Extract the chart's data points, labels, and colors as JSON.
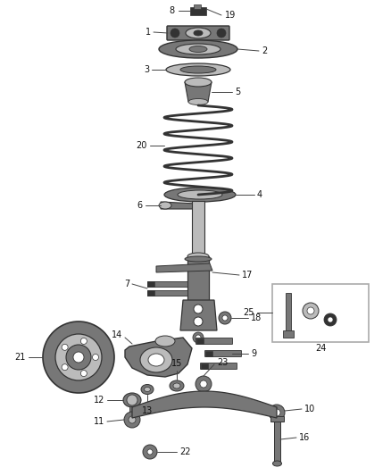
{
  "bg_color": "#ffffff",
  "fig_width": 4.38,
  "fig_height": 5.33,
  "lfs": 7.0,
  "part_dark": "#333333",
  "part_mid": "#777777",
  "part_light": "#bbbbbb",
  "line_color": "#444444"
}
